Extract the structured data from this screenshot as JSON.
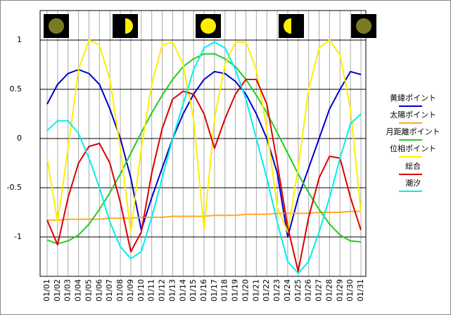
{
  "chart_data": {
    "type": "line",
    "categories": [
      "01/01",
      "01/02",
      "01/03",
      "01/04",
      "01/05",
      "01/06",
      "01/07",
      "01/08",
      "01/09",
      "01/10",
      "01/11",
      "01/12",
      "01/13",
      "01/14",
      "01/15",
      "01/16",
      "01/17",
      "01/18",
      "01/19",
      "01/20",
      "01/21",
      "01/22",
      "01/23",
      "01/24",
      "01/25",
      "01/26",
      "01/27",
      "01/28",
      "01/29",
      "01/30",
      "01/31"
    ],
    "ylim": [
      -1.4,
      1.3
    ],
    "yticks": [
      1,
      0.5,
      0,
      -0.5,
      -1
    ],
    "grid": true,
    "legend": "right",
    "series": [
      {
        "name": "黄緯ポイント",
        "color": "#0000cc",
        "values": [
          0.35,
          0.55,
          0.66,
          0.7,
          0.66,
          0.55,
          0.3,
          0.0,
          -0.4,
          -0.93,
          -0.6,
          -0.3,
          0.0,
          0.25,
          0.45,
          0.6,
          0.68,
          0.66,
          0.58,
          0.45,
          0.25,
          0.0,
          -0.35,
          -1.0,
          -0.6,
          -0.3,
          0.0,
          0.3,
          0.5,
          0.68,
          0.65
        ]
      },
      {
        "name": "太陽ポイント",
        "color": "#ffaa22",
        "values": [
          -0.83,
          -0.83,
          -0.82,
          -0.82,
          -0.82,
          -0.82,
          -0.81,
          -0.81,
          -0.81,
          -0.8,
          -0.8,
          -0.8,
          -0.79,
          -0.79,
          -0.79,
          -0.79,
          -0.78,
          -0.78,
          -0.78,
          -0.77,
          -0.77,
          -0.77,
          -0.76,
          -0.76,
          -0.76,
          -0.76,
          -0.75,
          -0.75,
          -0.75,
          -0.74,
          -0.74
        ]
      },
      {
        "name": "月距離ポイント",
        "color": "#22cc22",
        "values": [
          -1.03,
          -1.07,
          -1.04,
          -0.98,
          -0.87,
          -0.72,
          -0.55,
          -0.36,
          -0.15,
          0.06,
          0.26,
          0.44,
          0.6,
          0.73,
          0.81,
          0.86,
          0.86,
          0.81,
          0.73,
          0.6,
          0.44,
          0.26,
          0.06,
          -0.15,
          -0.36,
          -0.55,
          -0.72,
          -0.87,
          -0.98,
          -1.04,
          -1.05
        ]
      },
      {
        "name": "位相ポイント",
        "color": "#ffee00",
        "values": [
          -0.2,
          -0.85,
          -0.1,
          0.7,
          1.0,
          0.95,
          0.6,
          -0.1,
          -0.95,
          -0.1,
          0.55,
          0.95,
          0.98,
          0.75,
          0.2,
          -0.92,
          0.2,
          0.75,
          0.98,
          0.98,
          0.7,
          0.1,
          -0.7,
          -0.95,
          -0.3,
          0.5,
          0.92,
          1.0,
          0.85,
          0.3,
          -0.75
        ]
      },
      {
        "name": "総合",
        "color": "#dd0000",
        "values": [
          -0.83,
          -1.08,
          -0.6,
          -0.25,
          -0.08,
          -0.05,
          -0.25,
          -0.65,
          -1.15,
          -0.95,
          -0.35,
          0.1,
          0.4,
          0.48,
          0.45,
          0.25,
          -0.1,
          0.2,
          0.45,
          0.6,
          0.6,
          0.35,
          -0.25,
          -0.9,
          -1.35,
          -0.8,
          -0.4,
          -0.18,
          -0.2,
          -0.6,
          -0.93
        ]
      },
      {
        "name": "潮汐",
        "color": "#00eeee",
        "values": [
          0.08,
          0.18,
          0.18,
          0.05,
          -0.2,
          -0.5,
          -0.85,
          -1.1,
          -1.22,
          -1.15,
          -0.8,
          -0.4,
          0.0,
          0.35,
          0.7,
          0.92,
          0.98,
          0.92,
          0.7,
          0.4,
          0.0,
          -0.4,
          -0.85,
          -1.25,
          -1.37,
          -1.25,
          -0.95,
          -0.6,
          -0.2,
          0.15,
          0.25
        ]
      }
    ]
  }
}
